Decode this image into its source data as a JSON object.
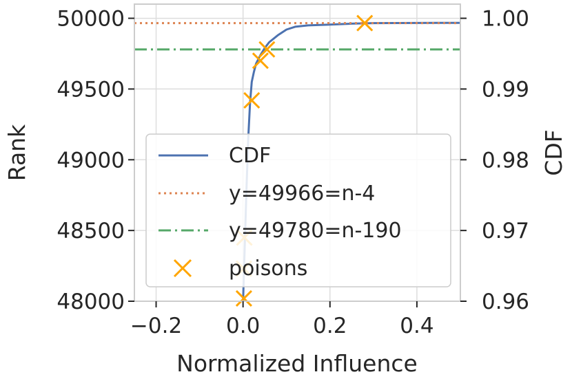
{
  "chart_data": {
    "type": "line",
    "xlabel": "Normalized Influence",
    "ylabel": "Rank",
    "y2label": "CDF",
    "xlim": [
      -0.25,
      0.5
    ],
    "ylim": [
      48000,
      50100
    ],
    "y2lim": [
      0.96,
      1.002
    ],
    "xticks": [
      -0.2,
      0.0,
      0.2,
      0.4
    ],
    "xtick_labels": [
      "−0.2",
      "0.0",
      "0.2",
      "0.4"
    ],
    "yticks": [
      48000,
      48500,
      49000,
      49500,
      50000
    ],
    "ytick_labels": [
      "48000",
      "48500",
      "49000",
      "49500",
      "50000"
    ],
    "y2ticks": [
      0.96,
      0.97,
      0.98,
      0.99,
      1.0
    ],
    "y2tick_labels": [
      "0.96",
      "0.97",
      "0.98",
      "0.99",
      "1.00"
    ],
    "grid": true,
    "legend_position": "lower-right",
    "series": [
      {
        "name": "CDF",
        "kind": "line",
        "style": "solid",
        "color": "#4c72b0",
        "x": [
          0.0,
          0.004,
          0.008,
          0.012,
          0.016,
          0.02,
          0.025,
          0.03,
          0.04,
          0.05,
          0.06,
          0.08,
          0.1,
          0.12,
          0.15,
          0.2,
          0.25,
          0.3,
          0.4,
          0.5
        ],
        "y": [
          48000,
          48400,
          48800,
          49150,
          49400,
          49550,
          49620,
          49680,
          49740,
          49790,
          49830,
          49880,
          49920,
          49940,
          49950,
          49955,
          49962,
          49966,
          49967,
          49968
        ]
      },
      {
        "name": "y=49966=n-4",
        "kind": "hline",
        "style": "dotted",
        "color": "#dd8452",
        "y": 49966
      },
      {
        "name": "y=49780=n-190",
        "kind": "hline",
        "style": "dashdot",
        "color": "#55a868",
        "y": 49780
      },
      {
        "name": "poisons",
        "kind": "scatter",
        "marker": "x",
        "color": "#ffa500",
        "x": [
          0.002,
          0.002,
          0.003,
          0.02,
          0.04,
          0.055,
          0.28
        ],
        "y": [
          48020,
          48230,
          48450,
          49420,
          49700,
          49780,
          49966
        ]
      }
    ]
  }
}
